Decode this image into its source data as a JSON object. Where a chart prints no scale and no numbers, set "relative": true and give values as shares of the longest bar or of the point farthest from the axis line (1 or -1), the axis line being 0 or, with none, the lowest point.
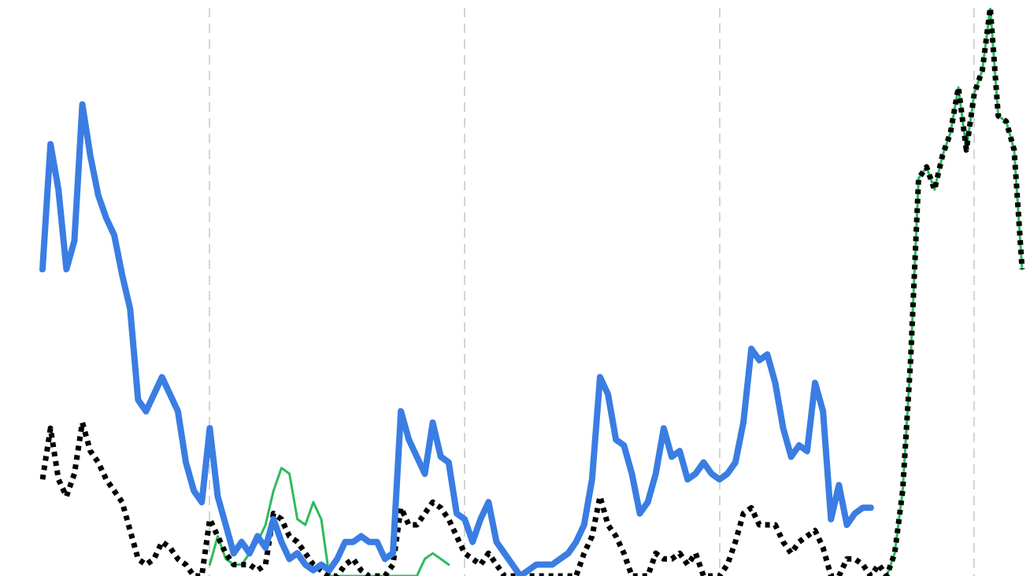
{
  "chart_data": {
    "type": "line",
    "relative": true,
    "grid": "x",
    "legend": false,
    "marker": "none",
    "categories": [
      null,
      null,
      null,
      null,
      null,
      null,
      null,
      null,
      null,
      null,
      null,
      null,
      null,
      null,
      null,
      null,
      null,
      null,
      null,
      null,
      null,
      null,
      null,
      null,
      null,
      null,
      null,
      null,
      null,
      null,
      null,
      null,
      null,
      null,
      null,
      null,
      null,
      null,
      null,
      null,
      null,
      null,
      null,
      null,
      null,
      null,
      null,
      null,
      null,
      null,
      null,
      null,
      null,
      null,
      null,
      null,
      null,
      null,
      null,
      null,
      null,
      null,
      null,
      null,
      null,
      null,
      null,
      null,
      null,
      null,
      null,
      null,
      null,
      null,
      null,
      null,
      null,
      null,
      null,
      null,
      null,
      null,
      null,
      null,
      null,
      null,
      null,
      null,
      null,
      null,
      null,
      null,
      null,
      null,
      null,
      null,
      null,
      null,
      null,
      null,
      null,
      null,
      null,
      null,
      null,
      null,
      null,
      null,
      null,
      null,
      null,
      null,
      null,
      null,
      null,
      null,
      null,
      null,
      null,
      null,
      null,
      null,
      null,
      null
    ],
    "series": [
      {
        "color": "#3a7de3",
        "line_style": "solid",
        "values": [
          0.54,
          0.76,
          0.68,
          0.54,
          0.59,
          0.83,
          0.74,
          0.67,
          0.63,
          0.6,
          0.53,
          0.47,
          0.31,
          0.29,
          0.32,
          0.35,
          0.32,
          0.29,
          0.2,
          0.15,
          0.13,
          0.26,
          0.14,
          0.09,
          0.04,
          0.06,
          0.04,
          0.07,
          0.05,
          0.1,
          0.06,
          0.03,
          0.04,
          0.02,
          0.01,
          0.02,
          0.01,
          0.03,
          0.06,
          0.06,
          0.07,
          0.06,
          0.06,
          0.03,
          0.04,
          0.29,
          0.24,
          0.21,
          0.18,
          0.27,
          0.21,
          0.2,
          0.11,
          0.1,
          0.06,
          0.1,
          0.13,
          0.06,
          0.04,
          0.02,
          0,
          0.01,
          0.02,
          0.02,
          0.02,
          0.03,
          0.04,
          0.06,
          0.09,
          0.17,
          0.35,
          0.32,
          0.24,
          0.23,
          0.18,
          0.11,
          0.13,
          0.18,
          0.26,
          0.21,
          0.22,
          0.17,
          0.18,
          0.2,
          0.18,
          0.17,
          0.18,
          0.2,
          0.27,
          0.4,
          0.38,
          0.39,
          0.34,
          0.26,
          0.21,
          0.23,
          0.22,
          0.34,
          0.29,
          0.1,
          0.16,
          0.09,
          0.11,
          0.12,
          0.12,
          null,
          null,
          null,
          null,
          null,
          null,
          null,
          null,
          null,
          null,
          null,
          null,
          null,
          null,
          null,
          null,
          null,
          null,
          null
        ]
      },
      {
        "color": "#000000",
        "line_style": "dotted",
        "values": [
          0.17,
          0.26,
          0.17,
          0.14,
          0.18,
          0.27,
          0.22,
          0.2,
          0.17,
          0.15,
          0.13,
          0.08,
          0.03,
          0.02,
          0.03,
          0.06,
          0.05,
          0.03,
          0.02,
          0,
          0,
          0.1,
          0.07,
          0.04,
          0.02,
          0.02,
          0.02,
          0.01,
          0.02,
          0.11,
          0.1,
          0.07,
          0.06,
          0.04,
          0.02,
          0.01,
          0,
          0,
          0.02,
          0.03,
          0.01,
          0,
          0,
          0,
          0.02,
          0.12,
          0.09,
          0.09,
          0.11,
          0.13,
          0.12,
          0.1,
          0.07,
          0.04,
          0.03,
          0.02,
          0.04,
          0.02,
          0,
          0,
          0,
          0,
          0,
          0,
          0,
          0,
          0,
          0,
          0.04,
          0.07,
          0.14,
          0.09,
          0.07,
          0.04,
          0,
          0,
          0,
          0.04,
          0.03,
          0.03,
          0.04,
          0.02,
          0.04,
          0,
          0,
          0,
          0.02,
          0.06,
          0.11,
          0.12,
          0.09,
          0.09,
          0.09,
          0.06,
          0.04,
          0.06,
          0.07,
          0.08,
          0.05,
          0,
          0,
          0.03,
          0.03,
          0.02,
          0,
          0.02,
          0,
          0.04,
          0.15,
          0.38,
          0.7,
          0.72,
          0.68,
          0.74,
          0.78,
          0.86,
          0.75,
          0.85,
          0.89,
          1,
          0.81,
          0.8,
          0.75,
          0.54
        ]
      },
      {
        "color": "#2dbb5d",
        "line_style": "solid",
        "values": [
          null,
          null,
          null,
          null,
          null,
          null,
          null,
          null,
          null,
          null,
          null,
          null,
          null,
          null,
          null,
          null,
          null,
          null,
          null,
          null,
          null,
          0.02,
          0.07,
          0.03,
          0.02,
          0.02,
          0.04,
          0.06,
          0.09,
          0.15,
          0.19,
          0.18,
          0.1,
          0.09,
          0.13,
          0.1,
          0,
          0,
          0,
          0,
          0,
          0,
          0,
          0,
          0,
          0,
          0,
          0,
          0.03,
          0.04,
          0.03,
          0.02,
          null,
          null,
          null,
          null,
          null,
          null,
          null,
          null,
          null,
          null,
          null,
          null,
          null,
          null,
          null,
          null,
          null,
          null,
          null,
          null,
          null,
          null,
          null,
          null,
          null,
          null,
          null,
          null,
          null,
          null,
          null,
          null,
          null,
          null,
          null,
          null,
          null,
          null,
          null,
          null,
          null,
          null,
          null,
          null,
          null,
          null,
          null,
          null,
          null,
          null,
          null,
          null,
          null,
          null,
          0,
          0.04,
          0.15,
          0.38,
          0.7,
          0.72,
          0.68,
          0.74,
          0.78,
          0.86,
          0.75,
          0.85,
          0.89,
          1,
          0.81,
          0.8,
          0.75,
          0.54
        ]
      }
    ]
  }
}
